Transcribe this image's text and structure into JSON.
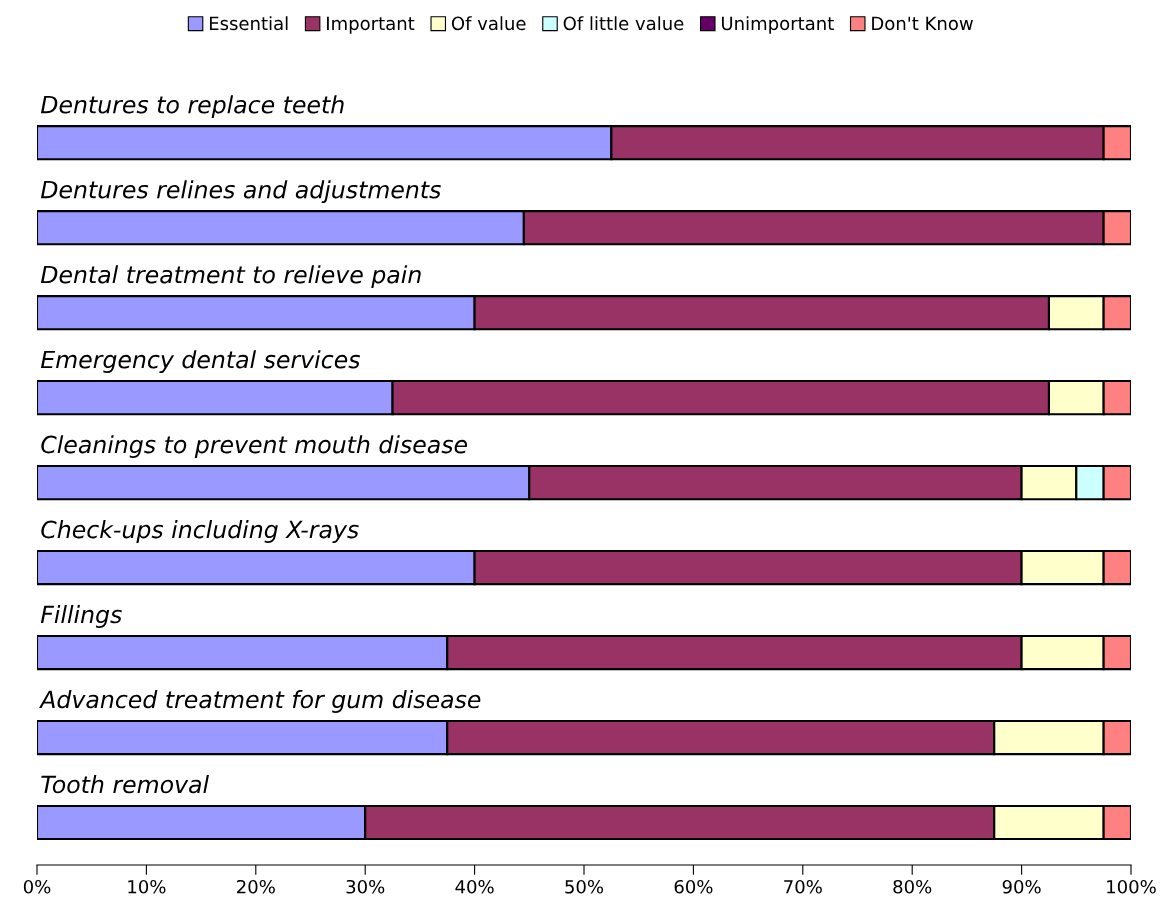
{
  "chart_data": {
    "type": "bar",
    "orientation": "horizontal",
    "stacked": true,
    "categories": [
      "Dentures to replace teeth",
      "Dentures relines and adjustments",
      "Dental treatment to relieve pain",
      "Emergency dental services",
      "Cleanings to prevent mouth disease",
      "Check-ups including X-rays",
      "Fillings",
      "Advanced treatment for gum disease",
      "Tooth removal"
    ],
    "series": [
      {
        "name": "Essential",
        "color": "#9999ff",
        "values": [
          52.5,
          44.5,
          40,
          32.5,
          45,
          40,
          37.5,
          37.5,
          30
        ]
      },
      {
        "name": "Important",
        "color": "#993366",
        "values": [
          45,
          53,
          52.5,
          60,
          45,
          50,
          52.5,
          50,
          57.5
        ]
      },
      {
        "name": "Of value",
        "color": "#ffffcc",
        "values": [
          0,
          0,
          5,
          5,
          5,
          7.5,
          7.5,
          10,
          10
        ]
      },
      {
        "name": "Of little value",
        "color": "#ccffff",
        "values": [
          0,
          0,
          0,
          0,
          2.5,
          0,
          0,
          0,
          0
        ]
      },
      {
        "name": "Unimportant",
        "color": "#660066",
        "values": [
          0,
          0,
          0,
          0,
          0,
          0,
          0,
          0,
          0
        ]
      },
      {
        "name": "Don't Know",
        "color": "#ff8080",
        "values": [
          2.5,
          2.5,
          2.5,
          2.5,
          2.5,
          2.5,
          2.5,
          2.5,
          2.5
        ]
      }
    ],
    "xlim": [
      0,
      100
    ],
    "xticks": [
      {
        "value": 0,
        "label": "0%"
      },
      {
        "value": 10,
        "label": "10%"
      },
      {
        "value": 20,
        "label": "20%"
      },
      {
        "value": 30,
        "label": "30%"
      },
      {
        "value": 40,
        "label": "40%"
      },
      {
        "value": 50,
        "label": "50%"
      },
      {
        "value": 60,
        "label": "60%"
      },
      {
        "value": 70,
        "label": "70%"
      },
      {
        "value": 80,
        "label": "80%"
      },
      {
        "value": 90,
        "label": "90%"
      },
      {
        "value": 100,
        "label": "100%"
      }
    ],
    "tick_labels": "x",
    "grid": false,
    "legend": "top"
  }
}
